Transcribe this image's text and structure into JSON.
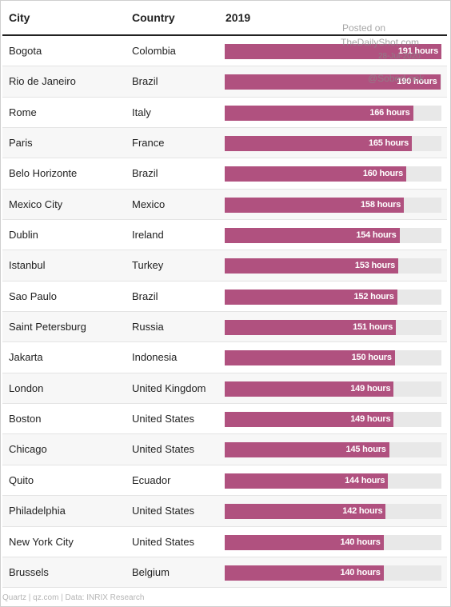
{
  "header": {
    "city": "City",
    "country": "Country",
    "year": "2019"
  },
  "watermark": {
    "posted_on": "Posted on",
    "site": "TheDailyShot.com",
    "date": "28-Jul-2020",
    "handle": "@SoberLook"
  },
  "footer": {
    "source": "Quartz | qz.com | Data: INRIX Research"
  },
  "chart_data": {
    "type": "bar",
    "orientation": "horizontal",
    "title": "",
    "xlabel": "",
    "ylabel": "",
    "value_header": "2019",
    "value_suffix": " hours",
    "xlim": [
      0,
      191
    ],
    "categories": [
      "Bogota",
      "Rio de Janeiro",
      "Rome",
      "Paris",
      "Belo Horizonte",
      "Mexico City",
      "Dublin",
      "Istanbul",
      "Sao Paulo",
      "Saint Petersburg",
      "Jakarta",
      "London",
      "Boston",
      "Chicago",
      "Quito",
      "Philadelphia",
      "New York City",
      "Brussels"
    ],
    "countries": [
      "Colombia",
      "Brazil",
      "Italy",
      "France",
      "Brazil",
      "Mexico",
      "Ireland",
      "Turkey",
      "Brazil",
      "Russia",
      "Indonesia",
      "United Kingdom",
      "United States",
      "United States",
      "Ecuador",
      "United States",
      "United States",
      "Belgium"
    ],
    "values": [
      191,
      190,
      166,
      165,
      160,
      158,
      154,
      153,
      152,
      151,
      150,
      149,
      149,
      145,
      144,
      142,
      140,
      140
    ],
    "colors": {
      "bar": "#b0517f",
      "track": "#e8e8e8"
    }
  }
}
